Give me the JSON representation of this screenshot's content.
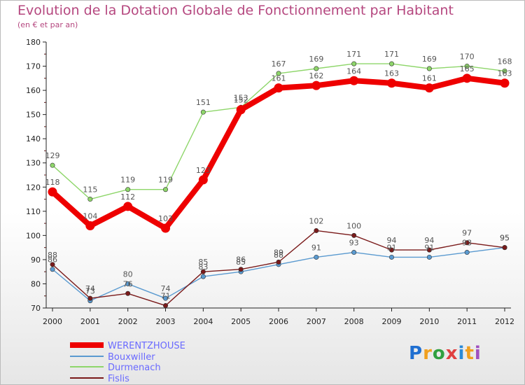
{
  "header": {
    "title": "Evolution de la Dotation Globale de Fonctionnement par Habitant",
    "subtitle": "(en € et par an)"
  },
  "logo": {
    "text": "Proxiti",
    "colors": [
      "#1f6fd1",
      "#f0a020",
      "#30a040",
      "#e04040",
      "#2a8ad8",
      "#f0a020",
      "#a050c0"
    ]
  },
  "chart_data": {
    "type": "line",
    "title": "Evolution de la Dotation Globale de Fonctionnement par Habitant",
    "subtitle": "(en € et par an)",
    "xlabel": "",
    "ylabel": "",
    "ylim": [
      70,
      180
    ],
    "yticks": [
      70,
      80,
      90,
      100,
      110,
      120,
      130,
      140,
      150,
      160,
      170,
      180
    ],
    "x": [
      "2000",
      "2001",
      "2002",
      "2003",
      "2004",
      "2005",
      "2006",
      "2007",
      "2008",
      "2009",
      "2010",
      "2011",
      "2012"
    ],
    "grid": false,
    "legend": "bottom-left",
    "series": [
      {
        "name": "WERENTZHOUSE",
        "color": "#ee0000",
        "values": [
          118,
          104,
          112,
          103,
          123,
          152,
          161,
          162,
          164,
          163,
          161,
          165,
          163
        ],
        "labels": [
          "118",
          "104",
          "112",
          "103",
          "123",
          "152",
          "161",
          "162",
          "164",
          "163",
          "161",
          "165",
          "163"
        ]
      },
      {
        "name": "Bouxwiller",
        "color": "#5a9ad0",
        "values": [
          86,
          73,
          80,
          74,
          83,
          85,
          88,
          91,
          93,
          91,
          91,
          93,
          95
        ],
        "labels": [
          "86",
          "73",
          "80",
          "74",
          "83",
          "85",
          "88",
          "91",
          "93",
          "91",
          "91",
          "93",
          "95"
        ]
      },
      {
        "name": "Durmenach",
        "color": "#8ed66a",
        "values": [
          129,
          115,
          119,
          119,
          151,
          153,
          167,
          169,
          171,
          171,
          169,
          170,
          168
        ],
        "labels": [
          "129",
          "115",
          "119",
          "119",
          "151",
          "153",
          "167",
          "169",
          "171",
          "171",
          "169",
          "170",
          "168"
        ]
      },
      {
        "name": "Fislis",
        "color": "#7a1a1a",
        "values": [
          88,
          74,
          76,
          71,
          85,
          86,
          89,
          102,
          100,
          94,
          94,
          97,
          95
        ],
        "labels": [
          "88",
          "74",
          "76",
          "71",
          "85",
          "86",
          "89",
          "102",
          "100",
          "94",
          "94",
          "97",
          "95"
        ]
      }
    ]
  }
}
